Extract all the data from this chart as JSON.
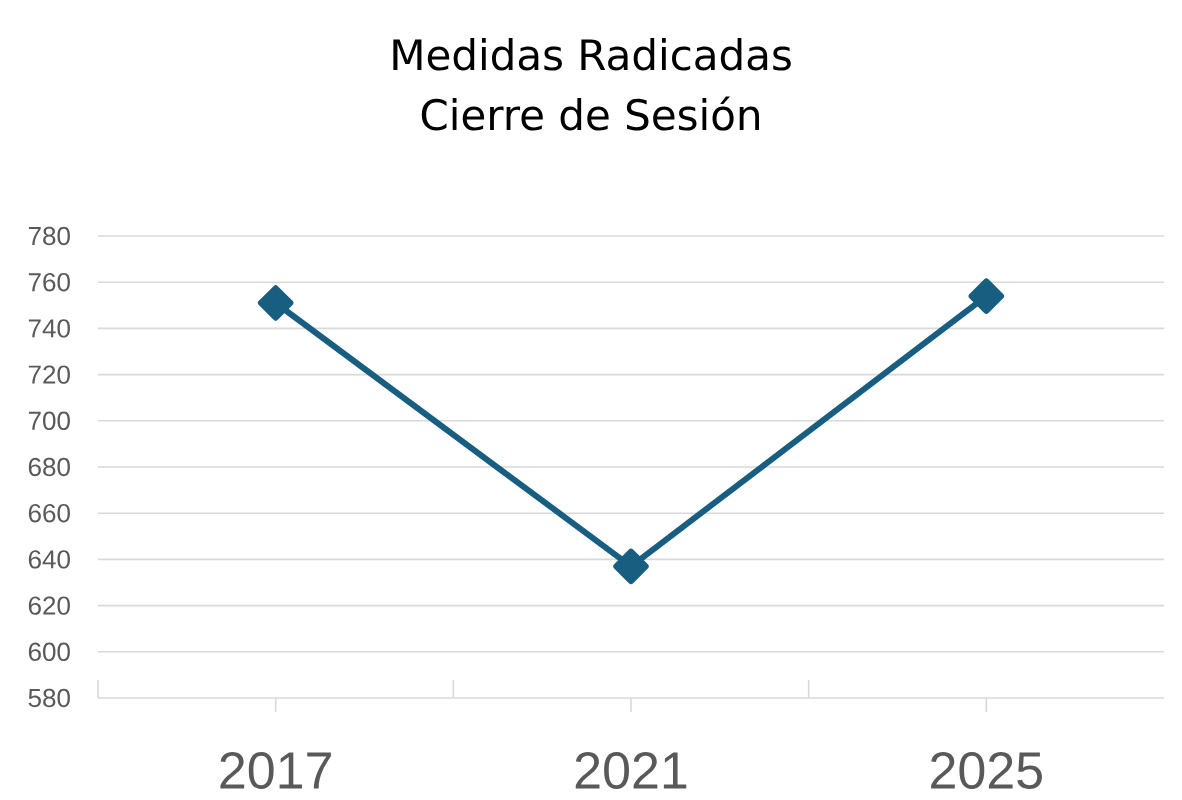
{
  "chart_data": {
    "type": "line",
    "title": "Medidas Radicadas",
    "subtitle": "Cierre de Sesión",
    "categories": [
      "2017",
      "2021",
      "2025"
    ],
    "series": [
      {
        "color": "#175e81",
        "values": [
          751,
          637,
          754
        ]
      }
    ],
    "ylim": [
      580,
      780
    ],
    "yticks": [
      580,
      600,
      620,
      640,
      660,
      680,
      700,
      720,
      740,
      760,
      780
    ],
    "grid": "y",
    "marker": "diamond",
    "line_style": "solid"
  }
}
